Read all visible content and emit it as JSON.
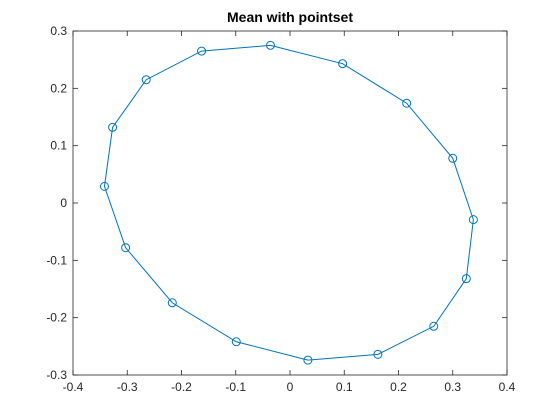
{
  "chart_data": {
    "type": "line",
    "title": "Mean with pointset",
    "xlabel": "",
    "ylabel": "",
    "xlim": [
      -0.4,
      0.4
    ],
    "ylim": [
      -0.3,
      0.3
    ],
    "xticks": [
      -0.4,
      -0.3,
      -0.2,
      -0.1,
      0,
      0.1,
      0.2,
      0.3,
      0.4
    ],
    "yticks": [
      -0.3,
      -0.2,
      -0.1,
      0,
      0.1,
      0.2,
      0.3
    ],
    "xtick_labels": [
      "-0.4",
      "-0.3",
      "-0.2",
      "-0.1",
      "0",
      "0.1",
      "0.2",
      "0.3",
      "0.4"
    ],
    "ytick_labels": [
      "-0.3",
      "-0.2",
      "-0.1",
      "0",
      "0.1",
      "0.2",
      "0.3"
    ],
    "grid": false,
    "box": true,
    "marker": "circle",
    "line_color": "#0072bd",
    "axis_color": "#262626",
    "series": [
      {
        "x": [
          -0.036,
          0.097,
          0.215,
          0.3,
          0.338,
          0.325,
          0.265,
          0.162,
          0.033,
          -0.099,
          -0.217,
          -0.303,
          -0.342,
          -0.327,
          -0.265,
          -0.163
        ],
        "y": [
          0.275,
          0.243,
          0.174,
          0.078,
          -0.029,
          -0.132,
          -0.215,
          -0.264,
          -0.274,
          -0.242,
          -0.174,
          -0.078,
          0.029,
          0.132,
          0.215,
          0.265
        ]
      }
    ]
  }
}
